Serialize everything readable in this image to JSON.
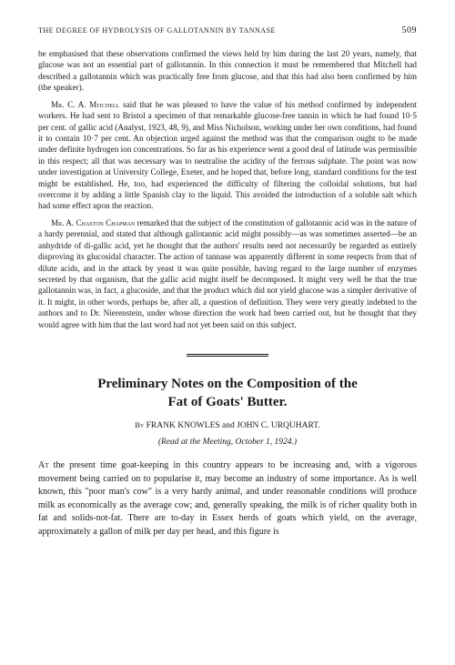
{
  "running_header": {
    "title": "THE DEGREE OF HYDROLYSIS OF GALLOTANNIN BY TANNASE",
    "page_number": "509"
  },
  "discussion": {
    "para1": "be emphasised that these observations confirmed the views held by him during the last 20 years, namely, that glucose was not an essential part of gallotannin. In this connection it must be remembered that Mitchell had described a gallotannin which was practically free from glucose, and that this had also been confirmed by him (the speaker).",
    "para2_speaker": "Mr. C. A. Mitchell",
    "para2": " said that he was pleased to have the value of his method confirmed by independent workers. He had sent to Bristol a specimen of that remarkable glucose-free tannin in which he had found 10·5 per cent. of gallic acid (Analyst, 1923, 48, 9), and Miss Nicholson, working under her own conditions, had found it to contain 10·7 per cent. An objection urged against the method was that the comparison ought to be made under definite hydrogen ion concentrations. So far as his experience went a good deal of latitude was permissible in this respect; all that was necessary was to neutralise the acidity of the ferrous sulphate. The point was now under investigation at University College, Exeter, and he hoped that, before long, standard conditions for the test might be established. He, too, had experienced the difficulty of filtering the colloidal solutions, but had overcome it by adding a little Spanish clay to the liquid. This avoided the introduction of a soluble salt which had some effect upon the reaction.",
    "para3_speaker": "Mr. A. Chaston Chapman",
    "para3": " remarked that the subject of the constitution of gallotannic acid was in the nature of a hardy perennial, and stated that although gallotannic acid might possibly—as was sometimes asserted—be an anhydride of di-gallic acid, yet he thought that the authors' results need not necessarily be regarded as entirely disproving its glucosidal character. The action of tannase was apparently different in some respects from that of dilute acids, and in the attack by yeast it was quite possible, having regard to the large number of enzymes secreted by that organism, that the gallic acid might itself be decomposed. It might very well be that the true gallotannin was, in fact, a glucoside, and that the product which did not yield glucose was a simpler derivative of it. It might, in other words, perhaps be, after all, a question of definition. They were very greatly indebted to the authors and to Dr. Nierenstein, under whose direction the work had been carried out, but he thought that they would agree with him that the last word had not yet been said on this subject."
  },
  "article": {
    "title_line1": "Preliminary Notes on the Composition of the",
    "title_line2": "Fat of Goats' Butter.",
    "by_label": "By",
    "authors": "FRANK KNOWLES and JOHN C. URQUHART.",
    "read_at": "(Read at the Meeting, October 1, 1924.)",
    "opening_word": "At",
    "body": " the present time goat-keeping in this country appears to be increasing and, with a vigorous movement being carried on to popularise it, may become an industry of some importance. As is well known, this \"poor man's cow\" is a very hardy animal, and under reasonable conditions will produce milk as economically as the average cow; and, generally speaking, the milk is of richer quality both in fat and solids-not-fat. There are to-day in Essex herds of goats which yield, on the average, approximately a gallon of milk per day per head, and this figure is"
  }
}
